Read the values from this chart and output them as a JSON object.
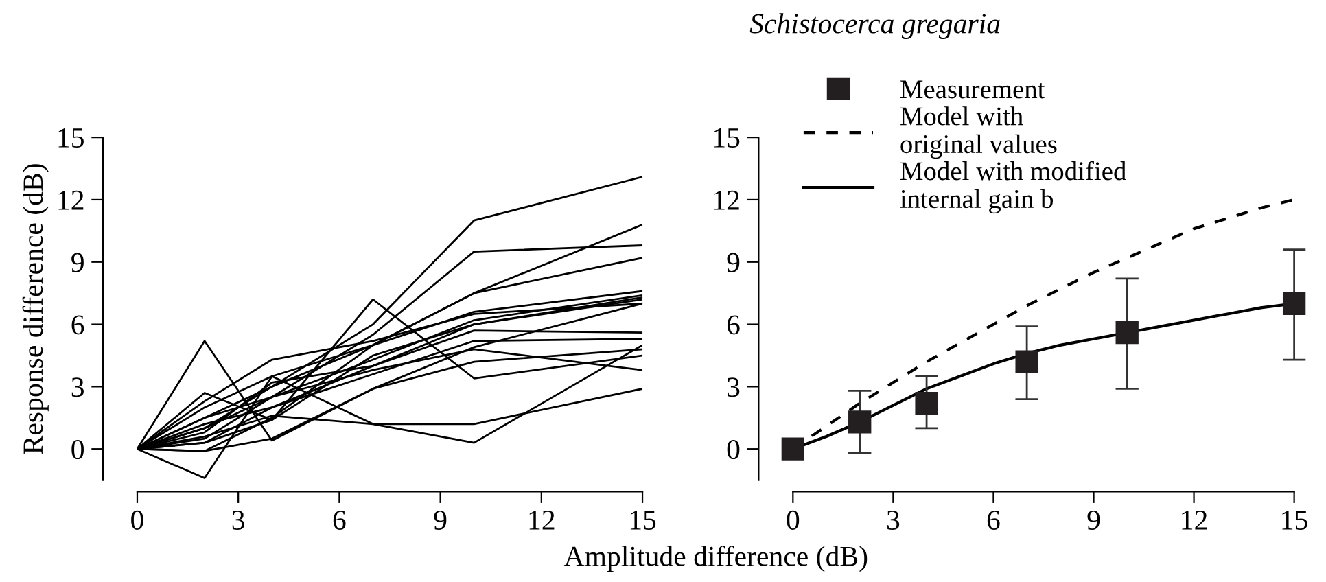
{
  "chart_data": [
    {
      "type": "line",
      "xlabel": "Amplitude difference (dB)",
      "ylabel": "Response difference (dB)",
      "x": [
        0,
        2,
        4,
        7,
        10,
        15
      ],
      "xlim": [
        0,
        15
      ],
      "xticks": [
        0,
        3,
        6,
        9,
        12,
        15
      ],
      "ylim": [
        -1.5,
        15
      ],
      "yticks": [
        0,
        3,
        6,
        9,
        12,
        15
      ],
      "grid": false,
      "legend": false,
      "marker": "none",
      "line_style": "solid",
      "series": [
        {
          "color": "#000000",
          "values": [
            0,
            1.0,
            3.0,
            6.0,
            11.0,
            13.1
          ]
        },
        {
          "color": "#000000",
          "values": [
            0,
            0.5,
            2.5,
            5.5,
            9.5,
            9.8
          ]
        },
        {
          "color": "#000000",
          "values": [
            0,
            -0.1,
            1.5,
            5.0,
            7.5,
            10.8
          ]
        },
        {
          "color": "#000000",
          "values": [
            0,
            1.5,
            3.0,
            5.0,
            7.5,
            9.2
          ]
        },
        {
          "color": "#000000",
          "values": [
            0,
            5.2,
            0.4,
            2.9,
            4.9,
            7.0
          ]
        },
        {
          "color": "#000000",
          "values": [
            0,
            -1.4,
            3.5,
            1.2,
            0.3,
            5.0
          ]
        },
        {
          "color": "#000000",
          "values": [
            0,
            0.3,
            1.4,
            7.2,
            3.4,
            4.5
          ]
        },
        {
          "color": "#000000",
          "values": [
            0,
            0.6,
            1.6,
            1.2,
            1.2,
            2.9
          ]
        },
        {
          "color": "#000000",
          "values": [
            0,
            -0.1,
            0.5,
            2.9,
            4.2,
            4.8
          ]
        },
        {
          "color": "#000000",
          "values": [
            0,
            2.0,
            3.5,
            5.0,
            6.6,
            7.6
          ]
        },
        {
          "color": "#000000",
          "values": [
            0,
            1.5,
            2.5,
            4.3,
            6.2,
            7.4
          ]
        },
        {
          "color": "#000000",
          "values": [
            0,
            1.2,
            2.0,
            4.0,
            6.0,
            7.3
          ]
        },
        {
          "color": "#000000",
          "values": [
            0,
            2.3,
            4.3,
            5.2,
            6.5,
            7.0
          ]
        },
        {
          "color": "#000000",
          "values": [
            0,
            2.7,
            1.4,
            4.5,
            6.0,
            7.2
          ]
        },
        {
          "color": "#000000",
          "values": [
            0,
            0.8,
            3.2,
            4.0,
            5.7,
            5.6
          ]
        },
        {
          "color": "#000000",
          "values": [
            0,
            0.3,
            2.0,
            3.6,
            5.2,
            5.3
          ]
        },
        {
          "color": "#000000",
          "values": [
            0,
            1.0,
            2.5,
            3.8,
            4.8,
            3.8
          ]
        }
      ]
    },
    {
      "type": "line",
      "title": "Schistocerca gregaria",
      "xlim": [
        0,
        15
      ],
      "xticks": [
        0,
        3,
        6,
        9,
        12,
        15
      ],
      "ylim": [
        -1.5,
        15
      ],
      "yticks": [
        0,
        3,
        6,
        9,
        12,
        15
      ],
      "grid": false,
      "legend": "top left",
      "series": [
        {
          "name": "Measurement",
          "type": "scatter",
          "marker": "square",
          "color": "#231f20",
          "x": [
            0,
            2,
            4,
            7,
            10,
            15
          ],
          "values": [
            0,
            1.3,
            2.2,
            4.2,
            5.6,
            7.0
          ],
          "errors": [
            null,
            [
              -0.2,
              2.8
            ],
            [
              1.0,
              3.5
            ],
            [
              2.4,
              5.9
            ],
            [
              2.9,
              8.2
            ],
            [
              4.3,
              9.6
            ]
          ]
        },
        {
          "name": "Model with\noriginal values",
          "line_style": "dashed",
          "marker": "none",
          "color": "#000000",
          "x": [
            0,
            1,
            2,
            3,
            4,
            5,
            6,
            7,
            8,
            9,
            10,
            11,
            12,
            13,
            14,
            15
          ],
          "values": [
            0,
            1.1,
            2.2,
            3.2,
            4.2,
            5.1,
            6.0,
            6.9,
            7.7,
            8.5,
            9.2,
            9.9,
            10.6,
            11.1,
            11.6,
            12.0
          ]
        },
        {
          "name": "Model with modified\ninternal gain b",
          "line_style": "solid",
          "marker": "none",
          "color": "#000000",
          "x": [
            0,
            1,
            2,
            3,
            4,
            5,
            6,
            7,
            8,
            9,
            10,
            11,
            12,
            13,
            14,
            15
          ],
          "values": [
            0,
            0.6,
            1.3,
            2.1,
            2.9,
            3.5,
            4.1,
            4.6,
            5.0,
            5.3,
            5.6,
            5.9,
            6.2,
            6.5,
            6.8,
            7.0
          ]
        }
      ]
    }
  ]
}
